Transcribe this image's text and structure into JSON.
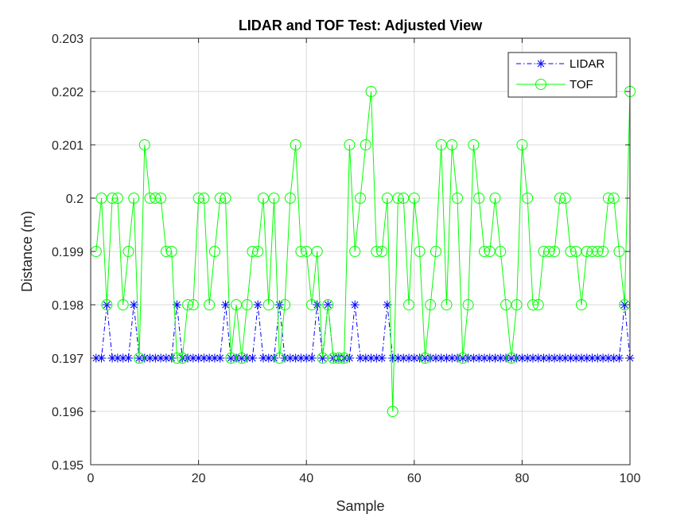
{
  "chart_data": {
    "type": "line",
    "title": "LIDAR and TOF Test: Adjusted View",
    "xlabel": "Sample",
    "ylabel": "Distance (m)",
    "xlim": [
      0,
      100
    ],
    "ylim": [
      0.195,
      0.203
    ],
    "xticks": [
      0,
      20,
      40,
      60,
      80,
      100
    ],
    "xtick_labels": [
      "0",
      "20",
      "40",
      "60",
      "80",
      "100"
    ],
    "yticks": [
      0.195,
      0.196,
      0.197,
      0.198,
      0.199,
      0.2,
      0.201,
      0.202,
      0.203
    ],
    "ytick_labels": [
      "0.195",
      "0.196",
      "0.197",
      "0.198",
      "0.199",
      "0.2",
      "0.201",
      "0.202",
      "0.203"
    ],
    "grid": true,
    "legend_position": "top-right",
    "x": [
      1,
      2,
      3,
      4,
      5,
      6,
      7,
      8,
      9,
      10,
      11,
      12,
      13,
      14,
      15,
      16,
      17,
      18,
      19,
      20,
      21,
      22,
      23,
      24,
      25,
      26,
      27,
      28,
      29,
      30,
      31,
      32,
      33,
      34,
      35,
      36,
      37,
      38,
      39,
      40,
      41,
      42,
      43,
      44,
      45,
      46,
      47,
      48,
      49,
      50,
      51,
      52,
      53,
      54,
      55,
      56,
      57,
      58,
      59,
      60,
      61,
      62,
      63,
      64,
      65,
      66,
      67,
      68,
      69,
      70,
      71,
      72,
      73,
      74,
      75,
      76,
      77,
      78,
      79,
      80,
      81,
      82,
      83,
      84,
      85,
      86,
      87,
      88,
      89,
      90,
      91,
      92,
      93,
      94,
      95,
      96,
      97,
      98,
      99,
      100
    ],
    "series": [
      {
        "name": "LIDAR",
        "color": "#0000ff",
        "line_style": "dash-dot",
        "marker": "asterisk",
        "values": [
          0.197,
          0.197,
          0.198,
          0.197,
          0.197,
          0.197,
          0.197,
          0.198,
          0.197,
          0.197,
          0.197,
          0.197,
          0.197,
          0.197,
          0.197,
          0.198,
          0.197,
          0.197,
          0.197,
          0.197,
          0.197,
          0.197,
          0.197,
          0.197,
          0.198,
          0.197,
          0.197,
          0.197,
          0.197,
          0.197,
          0.198,
          0.197,
          0.197,
          0.197,
          0.198,
          0.197,
          0.197,
          0.197,
          0.197,
          0.197,
          0.197,
          0.198,
          0.197,
          0.198,
          0.197,
          0.197,
          0.197,
          0.197,
          0.198,
          0.197,
          0.197,
          0.197,
          0.197,
          0.197,
          0.198,
          0.197,
          0.197,
          0.197,
          0.197,
          0.197,
          0.197,
          0.197,
          0.197,
          0.197,
          0.197,
          0.197,
          0.197,
          0.197,
          0.197,
          0.197,
          0.197,
          0.197,
          0.197,
          0.197,
          0.197,
          0.197,
          0.197,
          0.197,
          0.197,
          0.197,
          0.197,
          0.197,
          0.197,
          0.197,
          0.197,
          0.197,
          0.197,
          0.197,
          0.197,
          0.197,
          0.197,
          0.197,
          0.197,
          0.197,
          0.197,
          0.197,
          0.197,
          0.197,
          0.198,
          0.197
        ]
      },
      {
        "name": "TOF",
        "color": "#00ff00",
        "line_style": "solid",
        "marker": "circle",
        "values": [
          0.199,
          0.2,
          0.198,
          0.2,
          0.2,
          0.198,
          0.199,
          0.2,
          0.197,
          0.201,
          0.2,
          0.2,
          0.2,
          0.199,
          0.199,
          0.197,
          0.197,
          0.198,
          0.198,
          0.2,
          0.2,
          0.198,
          0.199,
          0.2,
          0.2,
          0.197,
          0.198,
          0.197,
          0.198,
          0.199,
          0.199,
          0.2,
          0.198,
          0.2,
          0.197,
          0.198,
          0.2,
          0.201,
          0.199,
          0.199,
          0.198,
          0.199,
          0.197,
          0.198,
          0.197,
          0.197,
          0.197,
          0.201,
          0.199,
          0.2,
          0.201,
          0.202,
          0.199,
          0.199,
          0.2,
          0.196,
          0.2,
          0.2,
          0.198,
          0.2,
          0.199,
          0.197,
          0.198,
          0.199,
          0.201,
          0.198,
          0.201,
          0.2,
          0.197,
          0.198,
          0.201,
          0.2,
          0.199,
          0.199,
          0.2,
          0.199,
          0.198,
          0.197,
          0.198,
          0.201,
          0.2,
          0.198,
          0.198,
          0.199,
          0.199,
          0.199,
          0.2,
          0.2,
          0.199,
          0.199,
          0.198,
          0.199,
          0.199,
          0.199,
          0.199,
          0.2,
          0.2,
          0.199,
          0.198,
          0.202
        ]
      }
    ]
  }
}
